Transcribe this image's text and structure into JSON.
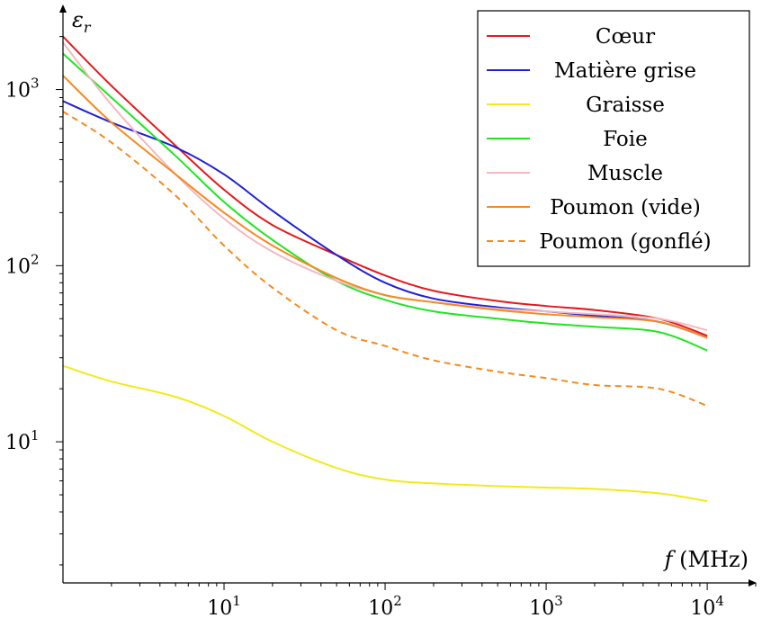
{
  "chart_data": {
    "type": "line",
    "x_scale": "log",
    "y_scale": "log",
    "xlim": [
      1,
      20000
    ],
    "ylim": [
      1.58,
      2800
    ],
    "xlabel_symbol": "f",
    "xlabel_unit": "(MHz)",
    "ylabel": "εr",
    "ylabel_symbol": "ε",
    "ylabel_sub": "r",
    "xticks": [
      {
        "value": 10,
        "base": "10",
        "exp": "1"
      },
      {
        "value": 100,
        "base": "10",
        "exp": "2"
      },
      {
        "value": 1000,
        "base": "10",
        "exp": "3"
      },
      {
        "value": 10000,
        "base": "10",
        "exp": "4"
      }
    ],
    "yticks": [
      {
        "value": 10,
        "base": "10",
        "exp": "1"
      },
      {
        "value": 100,
        "base": "10",
        "exp": "2"
      },
      {
        "value": 1000,
        "base": "10",
        "exp": "3"
      }
    ],
    "grid": false,
    "legend_position": "top-right",
    "x": [
      1,
      2,
      5,
      10,
      20,
      50,
      100,
      200,
      500,
      1000,
      2000,
      5000,
      10000
    ],
    "series": [
      {
        "name": "Cœur",
        "color": "#e41a1c",
        "dash": false,
        "values": [
          2000,
          1050,
          480,
          270,
          170,
          115,
          88,
          72,
          63,
          59,
          56,
          50,
          40
        ]
      },
      {
        "name": "Matière grise",
        "color": "#1f1fd6",
        "dash": false,
        "values": [
          860,
          650,
          470,
          330,
          205,
          115,
          80,
          65,
          58,
          55,
          52,
          48,
          39
        ]
      },
      {
        "name": "Graisse",
        "color": "#f2ea1b",
        "dash": false,
        "values": [
          27,
          22,
          18,
          14,
          10,
          7.1,
          6.1,
          5.8,
          5.6,
          5.5,
          5.4,
          5.1,
          4.6
        ]
      },
      {
        "name": "Foie",
        "color": "#1fe61f",
        "dash": false,
        "values": [
          1600,
          900,
          420,
          230,
          140,
          82,
          64,
          55,
          50,
          47,
          45,
          42,
          33
        ]
      },
      {
        "name": "Muscle",
        "color": "#f4b8c1",
        "dash": false,
        "values": [
          1850,
          820,
          330,
          185,
          120,
          82,
          68,
          62,
          57,
          55,
          53,
          50,
          43
        ]
      },
      {
        "name": "Poumon (vide)",
        "color": "#f58a1f",
        "dash": false,
        "values": [
          1200,
          650,
          330,
          200,
          130,
          85,
          68,
          62,
          56,
          53,
          51,
          48,
          39
        ]
      },
      {
        "name": "Poumon (gonflé)",
        "color": "#f58a1f",
        "dash": true,
        "values": [
          750,
          500,
          250,
          130,
          75,
          43,
          35,
          29,
          25,
          23,
          21,
          20,
          16
        ]
      }
    ]
  }
}
